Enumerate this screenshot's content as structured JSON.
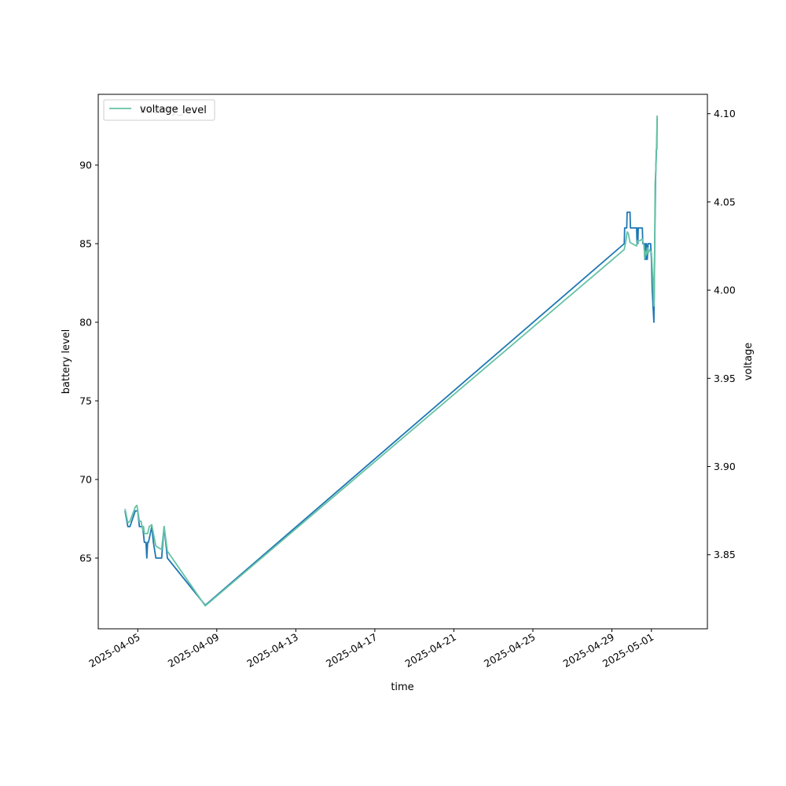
{
  "chart_data": {
    "type": "line",
    "title": "",
    "xlabel": "time",
    "ylabel": "battery level",
    "y2label": "voltage",
    "xlim": [
      "2025-04-03T00:00",
      "2025-05-03T20:00"
    ],
    "ylim": [
      60.5,
      94.5
    ],
    "y2lim": [
      3.808,
      4.111
    ],
    "x_ticks": [
      "2025-04-05",
      "2025-04-09",
      "2025-04-13",
      "2025-04-17",
      "2025-04-21",
      "2025-04-25",
      "2025-04-29",
      "2025-05-01"
    ],
    "y_ticks": [
      65,
      70,
      75,
      80,
      85,
      90
    ],
    "y2_ticks": [
      "3.85",
      "3.90",
      "3.95",
      "4.00",
      "4.05",
      "4.10"
    ],
    "grid": false,
    "legend": {
      "placement": "upper-left",
      "entries": [
        "voltage",
        "battery_level"
      ]
    },
    "series": [
      {
        "name": "battery_level",
        "axis": "left",
        "color": "#1f77b4",
        "points": [
          [
            "2025-04-04T08:30",
            68
          ],
          [
            "2025-04-04T12:00",
            67
          ],
          [
            "2025-04-04T14:30",
            67
          ],
          [
            "2025-04-04T21:00",
            68
          ],
          [
            "2025-04-05T00:00",
            68
          ],
          [
            "2025-04-05T02:00",
            67
          ],
          [
            "2025-04-05T06:00",
            67
          ],
          [
            "2025-04-05T08:00",
            66
          ],
          [
            "2025-04-05T10:00",
            66
          ],
          [
            "2025-04-05T11:00",
            65
          ],
          [
            "2025-04-05T12:00",
            66
          ],
          [
            "2025-04-05T13:00",
            66
          ],
          [
            "2025-04-05T17:00",
            67
          ],
          [
            "2025-04-05T19:00",
            66
          ],
          [
            "2025-04-05T22:00",
            65
          ],
          [
            "2025-04-06T05:00",
            65
          ],
          [
            "2025-04-06T08:00",
            67
          ],
          [
            "2025-04-06T12:00",
            65
          ],
          [
            "2025-04-08T10:00",
            62
          ],
          [
            "2025-04-29T15:00",
            85
          ],
          [
            "2025-04-29T15:30",
            86
          ],
          [
            "2025-04-29T18:00",
            86
          ],
          [
            "2025-04-29T18:30",
            87
          ],
          [
            "2025-04-29T22:00",
            87
          ],
          [
            "2025-04-29T22:30",
            86
          ],
          [
            "2025-04-30T06:00",
            86
          ],
          [
            "2025-04-30T06:30",
            85
          ],
          [
            "2025-04-30T07:00",
            86
          ],
          [
            "2025-04-30T07:30",
            85
          ],
          [
            "2025-04-30T08:00",
            86
          ],
          [
            "2025-04-30T13:00",
            86
          ],
          [
            "2025-04-30T13:30",
            85
          ],
          [
            "2025-04-30T15:00",
            85
          ],
          [
            "2025-04-30T16:00",
            84
          ],
          [
            "2025-04-30T16:30",
            85
          ],
          [
            "2025-04-30T17:30",
            84
          ],
          [
            "2025-04-30T18:00",
            85
          ],
          [
            "2025-04-30T19:00",
            84
          ],
          [
            "2025-04-30T20:00",
            85
          ],
          [
            "2025-04-30T23:00",
            85
          ],
          [
            "2025-05-01T00:00",
            84
          ],
          [
            "2025-05-01T01:00",
            82
          ],
          [
            "2025-05-01T02:00",
            81
          ],
          [
            "2025-05-01T03:00",
            80
          ],
          [
            "2025-05-01T04:00",
            85
          ],
          [
            "2025-05-01T05:00",
            89
          ],
          [
            "2025-05-01T06:00",
            91
          ],
          [
            "2025-05-01T06:30",
            91
          ],
          [
            "2025-05-01T07:00",
            93
          ]
        ]
      },
      {
        "name": "voltage",
        "axis": "right",
        "color": "#66c2a5",
        "points": [
          [
            "2025-04-04T08:30",
            3.876
          ],
          [
            "2025-04-04T12:00",
            3.868
          ],
          [
            "2025-04-04T14:30",
            3.869
          ],
          [
            "2025-04-04T21:00",
            3.877
          ],
          [
            "2025-04-04T23:00",
            3.878
          ],
          [
            "2025-04-05T02:00",
            3.869
          ],
          [
            "2025-04-05T04:00",
            3.869
          ],
          [
            "2025-04-05T06:00",
            3.864
          ],
          [
            "2025-04-05T07:00",
            3.866
          ],
          [
            "2025-04-05T08:00",
            3.862
          ],
          [
            "2025-04-05T10:00",
            3.862
          ],
          [
            "2025-04-05T12:00",
            3.862
          ],
          [
            "2025-04-05T14:00",
            3.866
          ],
          [
            "2025-04-05T17:00",
            3.867
          ],
          [
            "2025-04-05T19:00",
            3.862
          ],
          [
            "2025-04-05T22:00",
            3.855
          ],
          [
            "2025-04-06T01:00",
            3.854
          ],
          [
            "2025-04-06T05:00",
            3.853
          ],
          [
            "2025-04-06T08:00",
            3.866
          ],
          [
            "2025-04-06T12:00",
            3.852
          ],
          [
            "2025-04-08T10:00",
            3.821
          ],
          [
            "2025-04-29T15:00",
            4.023
          ],
          [
            "2025-04-29T17:00",
            4.028
          ],
          [
            "2025-04-29T18:30",
            4.033
          ],
          [
            "2025-04-29T20:00",
            4.032
          ],
          [
            "2025-04-29T22:00",
            4.027
          ],
          [
            "2025-04-30T02:00",
            4.026
          ],
          [
            "2025-04-30T06:00",
            4.025
          ],
          [
            "2025-04-30T07:00",
            4.028
          ],
          [
            "2025-04-30T10:00",
            4.028
          ],
          [
            "2025-04-30T13:00",
            4.029
          ],
          [
            "2025-04-30T15:00",
            4.025
          ],
          [
            "2025-04-30T16:00",
            4.018
          ],
          [
            "2025-04-30T16:30",
            4.022
          ],
          [
            "2025-04-30T18:00",
            4.02
          ],
          [
            "2025-04-30T19:00",
            4.024
          ],
          [
            "2025-04-30T20:00",
            4.021
          ],
          [
            "2025-04-30T22:00",
            4.023
          ],
          [
            "2025-05-01T00:00",
            4.021
          ],
          [
            "2025-05-01T02:00",
            4.004
          ],
          [
            "2025-05-01T03:00",
            3.991
          ],
          [
            "2025-05-01T03:30",
            3.996
          ],
          [
            "2025-05-01T04:30",
            4.06
          ],
          [
            "2025-05-01T05:30",
            4.07
          ],
          [
            "2025-05-01T06:00",
            4.076
          ],
          [
            "2025-05-01T07:00",
            4.099
          ]
        ]
      }
    ]
  }
}
